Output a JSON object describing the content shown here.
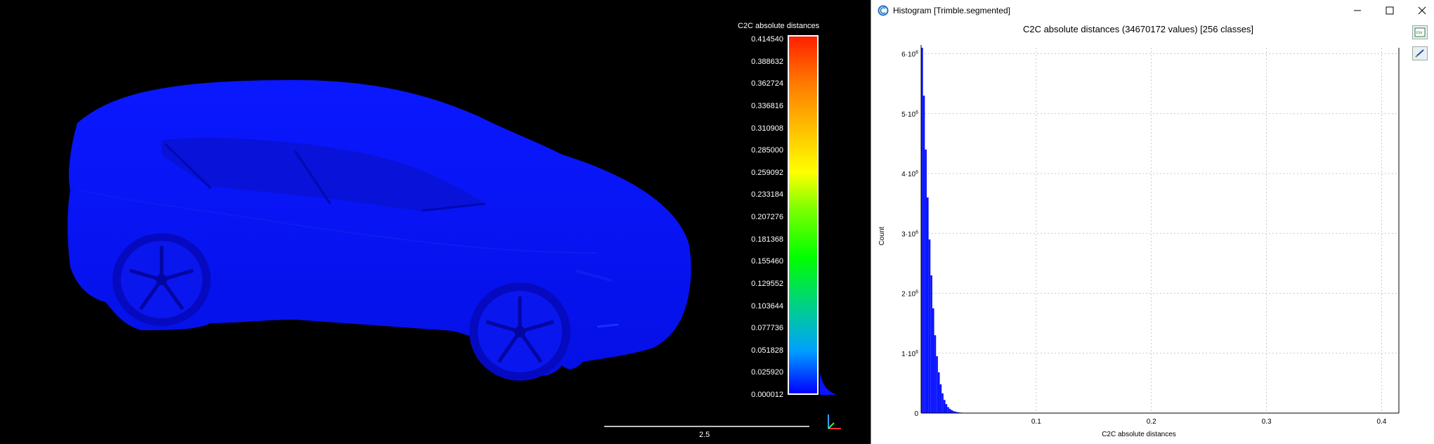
{
  "viewer": {
    "scale_title": "C2C absolute distances",
    "scale_ticks": [
      "0.414540",
      "0.388632",
      "0.362724",
      "0.336816",
      "0.310908",
      "0.285000",
      "0.259092",
      "0.233184",
      "0.207276",
      "0.181368",
      "0.155460",
      "0.129552",
      "0.103644",
      "0.077736",
      "0.051828",
      "0.025920",
      "0.000012"
    ],
    "scalebar_label": "2.5",
    "point_color": "#0a14ff"
  },
  "dialog": {
    "title": "Histogram [Trimble.segmented]",
    "icons": [
      "cloudcompare-icon",
      "minimize-icon",
      "maximize-icon",
      "close-icon",
      "export-csv-icon",
      "export-image-icon"
    ]
  },
  "chart_data": {
    "type": "bar",
    "title": "C2C absolute distances (34670172 values)  [256 classes]",
    "xlabel": "C2C absolute distances",
    "ylabel": "Count",
    "xlim": [
      0,
      0.415
    ],
    "ylim": [
      0,
      6100000
    ],
    "x_ticks": [
      {
        "value": 0.1,
        "label": "0.1"
      },
      {
        "value": 0.2,
        "label": "0.2"
      },
      {
        "value": 0.3,
        "label": "0.3"
      },
      {
        "value": 0.4,
        "label": "0.4"
      }
    ],
    "y_ticks": [
      {
        "value": 0,
        "label": "0"
      },
      {
        "value": 1000000,
        "label": "1·10",
        "exp": "6"
      },
      {
        "value": 2000000,
        "label": "2·10",
        "exp": "6"
      },
      {
        "value": 3000000,
        "label": "3·10",
        "exp": "6"
      },
      {
        "value": 4000000,
        "label": "4·10",
        "exp": "6"
      },
      {
        "value": 5000000,
        "label": "5·10",
        "exp": "6"
      },
      {
        "value": 6000000,
        "label": "6·10",
        "exp": "6"
      }
    ],
    "bin_width": 0.00162,
    "bin_starts": [
      1e-05,
      0.00163,
      0.00325,
      0.00487,
      0.00649,
      0.00811,
      0.00973,
      0.01135,
      0.01297,
      0.01459,
      0.01621,
      0.01783,
      0.01945,
      0.02107,
      0.02269,
      0.02431,
      0.02593,
      0.02755,
      0.02917,
      0.03079,
      0.03241,
      0.03403,
      0.03565,
      0.03727,
      0.03889,
      0.04051,
      0.04213,
      0.04375,
      0.04537,
      0.04699
    ],
    "values": [
      6100000,
      5300000,
      4400000,
      3600000,
      2900000,
      2300000,
      1750000,
      1300000,
      950000,
      680000,
      480000,
      330000,
      220000,
      150000,
      100000,
      70000,
      48000,
      33000,
      23000,
      16000,
      11000,
      8000,
      6000,
      4500,
      3500,
      2500,
      2000,
      1500,
      1000,
      800
    ],
    "grid": true,
    "bar_color": "#0a14ff"
  }
}
